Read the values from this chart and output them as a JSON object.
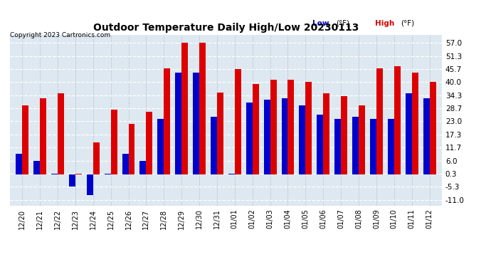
{
  "title": "Outdoor Temperature Daily High/Low 20230113",
  "copyright": "Copyright 2023 Cartronics.com",
  "legend_low": "Low",
  "legend_high": "High",
  "legend_unit": "(°F)",
  "low_color": "#0000cc",
  "high_color": "#dd0000",
  "background_color": "#ffffff",
  "plot_bg_color": "#dde8f0",
  "grid_color_h": "#ffffff",
  "grid_color_v": "#aaaacc",
  "yticks": [
    57.0,
    51.3,
    45.7,
    40.0,
    34.3,
    28.7,
    23.0,
    17.3,
    11.7,
    6.0,
    0.3,
    -5.3,
    -11.0
  ],
  "ylim": [
    -13.5,
    60.5
  ],
  "dates": [
    "12/20",
    "12/21",
    "12/22",
    "12/23",
    "12/24",
    "12/25",
    "12/26",
    "12/27",
    "12/28",
    "12/29",
    "12/30",
    "12/31",
    "01/01",
    "01/02",
    "01/03",
    "01/04",
    "01/05",
    "01/06",
    "01/07",
    "01/08",
    "01/09",
    "01/10",
    "01/11",
    "01/12"
  ],
  "highs": [
    30.0,
    33.0,
    35.0,
    0.3,
    14.0,
    28.0,
    22.0,
    27.0,
    46.0,
    57.0,
    57.0,
    35.5,
    45.7,
    39.0,
    41.0,
    41.0,
    40.0,
    35.0,
    34.0,
    30.0,
    46.0,
    47.0,
    44.0,
    40.0
  ],
  "lows": [
    9.0,
    6.0,
    0.3,
    -5.3,
    -9.0,
    0.3,
    9.0,
    6.0,
    24.0,
    44.0,
    44.0,
    25.0,
    0.3,
    31.0,
    32.5,
    33.0,
    30.0,
    26.0,
    24.0,
    25.0,
    24.0,
    24.0,
    35.0,
    33.0
  ]
}
